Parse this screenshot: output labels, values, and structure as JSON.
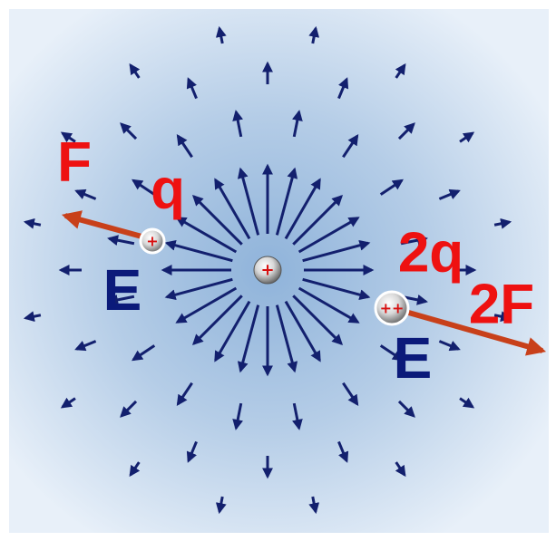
{
  "left": {
    "force": "F",
    "charge": "q",
    "field": "E",
    "symbol": "+"
  },
  "center": {
    "symbol": "+"
  },
  "right": {
    "force": "2F",
    "charge": "2q",
    "field": "E",
    "symbol": "++"
  }
}
